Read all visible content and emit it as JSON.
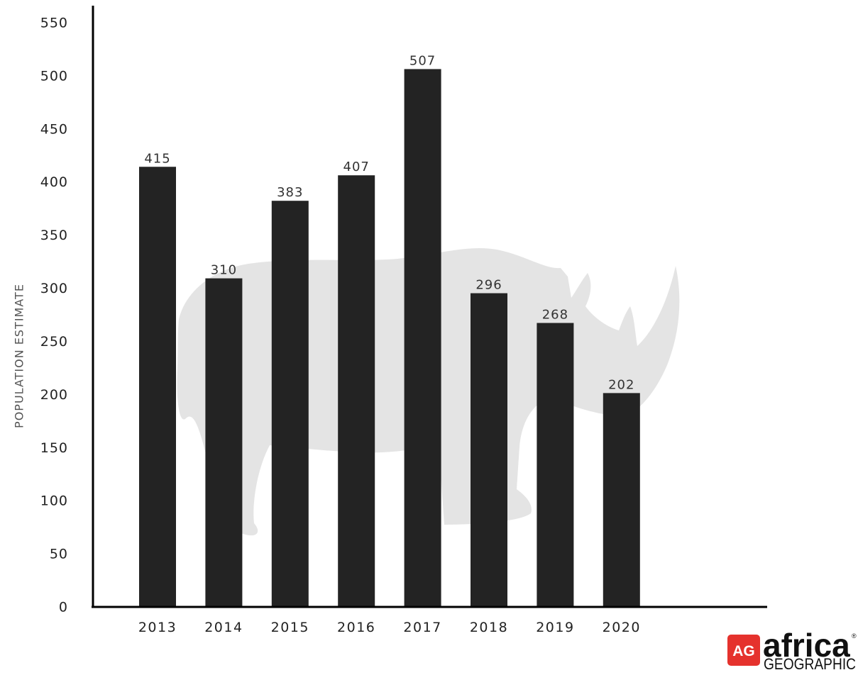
{
  "chart_data": {
    "type": "bar",
    "categories": [
      "2013",
      "2014",
      "2015",
      "2016",
      "2017",
      "2018",
      "2019",
      "2020"
    ],
    "values": [
      415,
      310,
      383,
      407,
      507,
      296,
      268,
      202
    ],
    "data_labels": [
      "415",
      "310",
      "383",
      "407",
      "507",
      "296",
      "268",
      "202"
    ],
    "title": "",
    "xlabel": "",
    "ylabel": "POPULATION ESTIMATE",
    "ylim": [
      0,
      550
    ],
    "yticks": [
      "0",
      "50",
      "100",
      "150",
      "200",
      "250",
      "300",
      "350",
      "400",
      "450",
      "500",
      "550"
    ],
    "grid": false,
    "legend": "none",
    "colors": {
      "bar": "#232323",
      "axis": "#000000",
      "watermark": "#e4e4e4"
    },
    "watermark_icon": "rhino-silhouette-icon"
  },
  "logo": {
    "icon": "africa-geographic-logo-icon",
    "badge_text": "AG",
    "wordmark": "africa",
    "subtext": "GEOGRAPHIC",
    "registered": "®",
    "badge_color": "#e5322d"
  }
}
